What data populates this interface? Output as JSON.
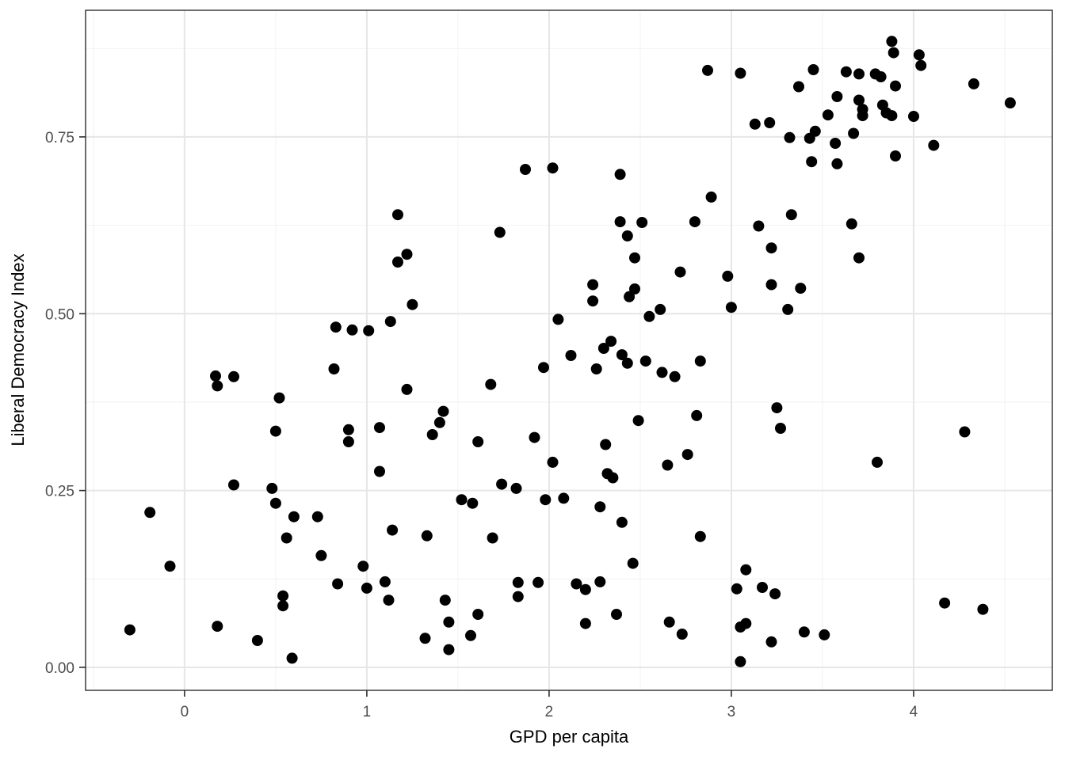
{
  "chart_data": {
    "type": "scatter",
    "title": "",
    "xlabel": "GPD per capita",
    "ylabel": "Liberal Democracy Index",
    "xlim": [
      -0.543,
      4.761
    ],
    "ylim": [
      -0.0325,
      0.929
    ],
    "x_ticks": [
      0,
      1,
      2,
      3,
      4
    ],
    "x_tick_labels": [
      "0",
      "1",
      "2",
      "3",
      "4"
    ],
    "y_ticks": [
      0.0,
      0.25,
      0.5,
      0.75
    ],
    "y_tick_labels": [
      "0.00",
      "0.25",
      "0.50",
      "0.75"
    ],
    "x_minor_gridlines": [
      -0.5,
      0.5,
      1.5,
      2.5,
      3.5,
      4.5
    ],
    "y_minor_gridlines": [
      0.125,
      0.375,
      0.625,
      0.875
    ],
    "grid": "on",
    "legend_position": "none",
    "points": [
      [
        1.17,
        0.64
      ],
      [
        2.87,
        0.844
      ],
      [
        1.87,
        0.704
      ],
      [
        2.02,
        0.706
      ],
      [
        2.39,
        0.697
      ],
      [
        2.89,
        0.665
      ],
      [
        2.39,
        0.63
      ],
      [
        2.51,
        0.629
      ],
      [
        2.8,
        0.63
      ],
      [
        3.88,
        0.885
      ],
      [
        3.89,
        0.869
      ],
      [
        4.03,
        0.866
      ],
      [
        4.04,
        0.851
      ],
      [
        3.05,
        0.84
      ],
      [
        3.45,
        0.845
      ],
      [
        3.63,
        0.842
      ],
      [
        3.7,
        0.839
      ],
      [
        3.79,
        0.839
      ],
      [
        3.82,
        0.835
      ],
      [
        3.37,
        0.821
      ],
      [
        3.9,
        0.822
      ],
      [
        4.33,
        0.825
      ],
      [
        3.58,
        0.807
      ],
      [
        4.53,
        0.798
      ],
      [
        3.7,
        0.802
      ],
      [
        3.72,
        0.789
      ],
      [
        3.72,
        0.78
      ],
      [
        3.83,
        0.795
      ],
      [
        3.85,
        0.784
      ],
      [
        3.88,
        0.78
      ],
      [
        3.53,
        0.781
      ],
      [
        4.0,
        0.779
      ],
      [
        3.13,
        0.768
      ],
      [
        3.21,
        0.77
      ],
      [
        3.32,
        0.749
      ],
      [
        3.43,
        0.748
      ],
      [
        3.46,
        0.758
      ],
      [
        3.57,
        0.741
      ],
      [
        3.67,
        0.755
      ],
      [
        4.11,
        0.738
      ],
      [
        3.9,
        0.723
      ],
      [
        3.44,
        0.715
      ],
      [
        3.58,
        0.712
      ],
      [
        3.33,
        0.64
      ],
      [
        3.15,
        0.624
      ],
      [
        3.66,
        0.627
      ],
      [
        1.17,
        0.573
      ],
      [
        1.22,
        0.584
      ],
      [
        1.13,
        0.489
      ],
      [
        0.83,
        0.481
      ],
      [
        0.92,
        0.477
      ],
      [
        1.01,
        0.476
      ],
      [
        0.82,
        0.422
      ],
      [
        0.17,
        0.412
      ],
      [
        0.18,
        0.398
      ],
      [
        0.27,
        0.411
      ],
      [
        0.52,
        0.381
      ],
      [
        0.5,
        0.334
      ],
      [
        0.9,
        0.336
      ],
      [
        0.9,
        0.319
      ],
      [
        1.07,
        0.339
      ],
      [
        1.22,
        0.393
      ],
      [
        1.73,
        0.615
      ],
      [
        2.43,
        0.61
      ],
      [
        2.47,
        0.579
      ],
      [
        2.72,
        0.559
      ],
      [
        2.98,
        0.553
      ],
      [
        2.24,
        0.541
      ],
      [
        2.47,
        0.535
      ],
      [
        2.44,
        0.524
      ],
      [
        2.24,
        0.518
      ],
      [
        1.25,
        0.513
      ],
      [
        2.61,
        0.506
      ],
      [
        2.55,
        0.496
      ],
      [
        2.05,
        0.492
      ],
      [
        2.34,
        0.461
      ],
      [
        2.3,
        0.451
      ],
      [
        2.12,
        0.441
      ],
      [
        2.4,
        0.442
      ],
      [
        2.43,
        0.43
      ],
      [
        2.53,
        0.433
      ],
      [
        1.97,
        0.424
      ],
      [
        2.26,
        0.422
      ],
      [
        2.62,
        0.417
      ],
      [
        2.69,
        0.411
      ],
      [
        2.83,
        0.433
      ],
      [
        1.68,
        0.4
      ],
      [
        1.42,
        0.362
      ],
      [
        1.4,
        0.346
      ],
      [
        1.36,
        0.329
      ],
      [
        1.61,
        0.319
      ],
      [
        1.92,
        0.325
      ],
      [
        2.31,
        0.315
      ],
      [
        2.49,
        0.349
      ],
      [
        2.81,
        0.356
      ],
      [
        2.76,
        0.301
      ],
      [
        3.22,
        0.593
      ],
      [
        3.7,
        0.579
      ],
      [
        3.22,
        0.541
      ],
      [
        3.38,
        0.536
      ],
      [
        3.0,
        0.509
      ],
      [
        3.31,
        0.506
      ],
      [
        3.25,
        0.367
      ],
      [
        3.27,
        0.338
      ],
      [
        4.28,
        0.333
      ],
      [
        1.07,
        0.277
      ],
      [
        0.27,
        0.258
      ],
      [
        0.48,
        0.253
      ],
      [
        -0.19,
        0.219
      ],
      [
        0.5,
        0.232
      ],
      [
        0.6,
        0.213
      ],
      [
        0.73,
        0.213
      ],
      [
        0.56,
        0.183
      ],
      [
        1.14,
        0.194
      ],
      [
        0.75,
        0.158
      ],
      [
        -0.08,
        0.143
      ],
      [
        0.98,
        0.143
      ],
      [
        0.84,
        0.118
      ],
      [
        1.0,
        0.112
      ],
      [
        1.1,
        0.121
      ],
      [
        1.12,
        0.095
      ],
      [
        0.54,
        0.101
      ],
      [
        0.54,
        0.087
      ],
      [
        -0.3,
        0.053
      ],
      [
        0.18,
        0.058
      ],
      [
        0.4,
        0.038
      ],
      [
        0.59,
        0.013
      ],
      [
        2.02,
        0.29
      ],
      [
        2.65,
        0.286
      ],
      [
        2.32,
        0.274
      ],
      [
        2.35,
        0.268
      ],
      [
        1.74,
        0.259
      ],
      [
        1.82,
        0.253
      ],
      [
        1.52,
        0.237
      ],
      [
        1.58,
        0.232
      ],
      [
        1.98,
        0.237
      ],
      [
        2.08,
        0.239
      ],
      [
        2.28,
        0.227
      ],
      [
        2.4,
        0.205
      ],
      [
        1.33,
        0.186
      ],
      [
        1.69,
        0.183
      ],
      [
        2.83,
        0.185
      ],
      [
        2.46,
        0.147
      ],
      [
        1.83,
        0.12
      ],
      [
        1.94,
        0.12
      ],
      [
        2.15,
        0.118
      ],
      [
        2.2,
        0.11
      ],
      [
        2.28,
        0.121
      ],
      [
        1.83,
        0.1
      ],
      [
        1.43,
        0.095
      ],
      [
        1.61,
        0.075
      ],
      [
        2.37,
        0.075
      ],
      [
        1.45,
        0.064
      ],
      [
        2.2,
        0.062
      ],
      [
        1.57,
        0.045
      ],
      [
        1.32,
        0.041
      ],
      [
        1.45,
        0.025
      ],
      [
        2.66,
        0.064
      ],
      [
        2.73,
        0.047
      ],
      [
        3.8,
        0.29
      ],
      [
        3.08,
        0.138
      ],
      [
        3.03,
        0.111
      ],
      [
        3.17,
        0.113
      ],
      [
        3.24,
        0.104
      ],
      [
        4.17,
        0.091
      ],
      [
        4.38,
        0.082
      ],
      [
        3.05,
        0.057
      ],
      [
        3.08,
        0.062
      ],
      [
        3.4,
        0.05
      ],
      [
        3.51,
        0.046
      ],
      [
        3.22,
        0.036
      ],
      [
        3.05,
        0.008
      ]
    ]
  },
  "colors": {
    "background": "#FFFFFF",
    "panel_background": "#FFFFFF",
    "panel_border": "#2D2D2D",
    "grid_major": "#E6E6E6",
    "grid_minor": "#F2F2F2",
    "point": "#000000",
    "tick_mark": "#2D2D2D",
    "tick_label": "#4D4D4D",
    "axis_title": "#000000"
  }
}
